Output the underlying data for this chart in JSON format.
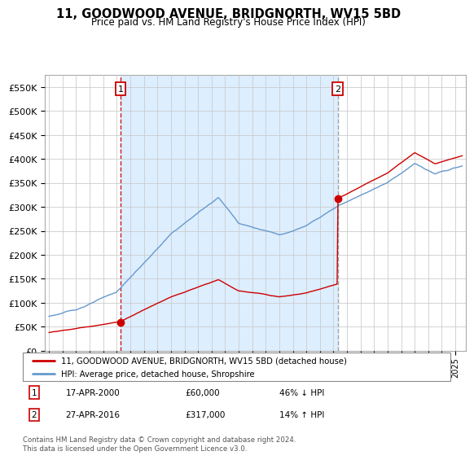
{
  "title": "11, GOODWOOD AVENUE, BRIDGNORTH, WV15 5BD",
  "subtitle": "Price paid vs. HM Land Registry's House Price Index (HPI)",
  "sale1_year": 2000.29,
  "sale1_price": 60000,
  "sale2_year": 2016.32,
  "sale2_price": 317000,
  "legend1": "11, GOODWOOD AVENUE, BRIDGNORTH, WV15 5BD (detached house)",
  "legend2": "HPI: Average price, detached house, Shropshire",
  "annotation1_date": "17-APR-2000",
  "annotation1_price": "£60,000",
  "annotation1_hpi": "46% ↓ HPI",
  "annotation2_date": "27-APR-2016",
  "annotation2_price": "£317,000",
  "annotation2_hpi": "14% ↑ HPI",
  "footnote": "Contains HM Land Registry data © Crown copyright and database right 2024.\nThis data is licensed under the Open Government Licence v3.0.",
  "ylim": [
    0,
    575000
  ],
  "yticks": [
    0,
    50000,
    100000,
    150000,
    200000,
    250000,
    300000,
    350000,
    400000,
    450000,
    500000,
    550000
  ],
  "hpi_color": "#6699cc",
  "sale_color": "#cc0000",
  "vline1_color": "#cc0000",
  "vline2_color": "#999999",
  "shade_color": "#ddeeff",
  "background_color": "#ffffff",
  "grid_color": "#cccccc",
  "xlim_left": 1994.7,
  "xlim_right": 2025.8
}
